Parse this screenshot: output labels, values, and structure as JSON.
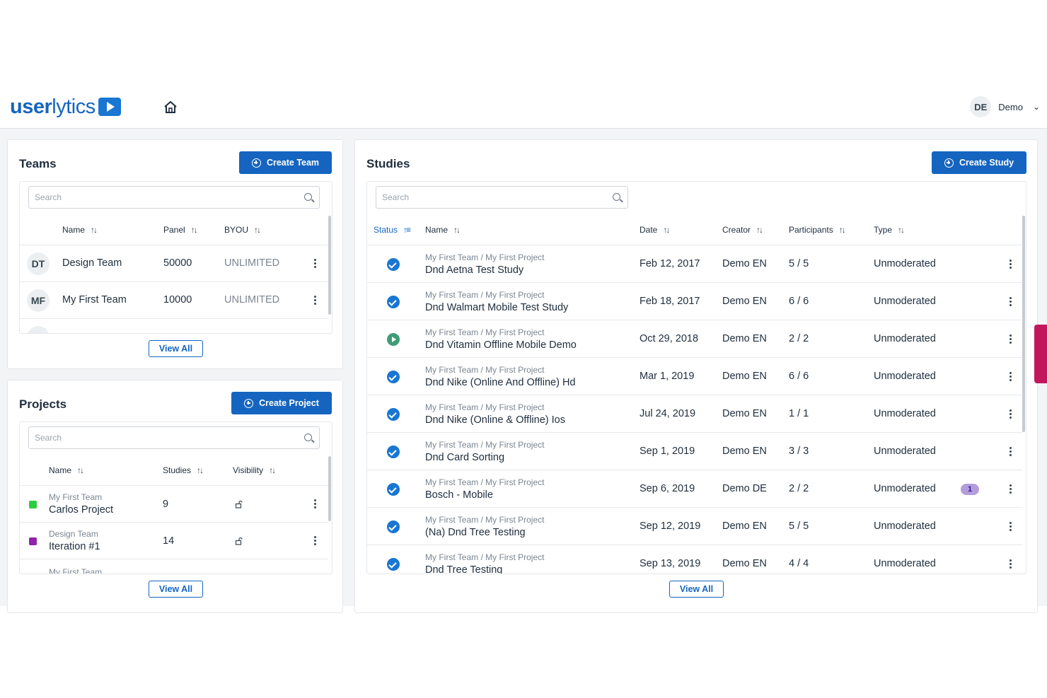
{
  "header": {
    "logo_bold": "user",
    "logo_light": "lytics",
    "user_initials": "DE",
    "user_name": "Demo"
  },
  "teams": {
    "title": "Teams",
    "create_label": "Create Team",
    "search_placeholder": "Search",
    "columns": [
      "Name",
      "Panel",
      "BYOU"
    ],
    "rows": [
      {
        "initials": "DT",
        "name": "Design Team",
        "panel": "50000",
        "byou": "UNLIMITED"
      },
      {
        "initials": "MF",
        "name": "My First Team",
        "panel": "10000",
        "byou": "UNLIMITED"
      }
    ],
    "view_all": "View All"
  },
  "projects": {
    "title": "Projects",
    "create_label": "Create Project",
    "search_placeholder": "Search",
    "columns": [
      "Name",
      "Studies",
      "Visibility"
    ],
    "rows": [
      {
        "team": "My First Team",
        "name": "Carlos Project",
        "studies": "9",
        "color": "#2ecc40"
      },
      {
        "team": "Design Team",
        "name": "Iteration #1",
        "studies": "14",
        "color": "#8e24aa"
      },
      {
        "team": "My First Team"
      }
    ],
    "view_all": "View All"
  },
  "studies": {
    "title": "Studies",
    "create_label": "Create Study",
    "search_placeholder": "Search",
    "columns": [
      "Status",
      "Name",
      "Date",
      "Creator",
      "Participants",
      "Type"
    ],
    "rows": [
      {
        "status": "complete",
        "path": "My First Team / My First Project",
        "name": "Dnd Aetna Test Study",
        "date": "Feb 12, 2017",
        "creator": "Demo EN",
        "participants": "5 / 5",
        "type": "Unmoderated"
      },
      {
        "status": "complete",
        "path": "My First Team / My First Project",
        "name": "Dnd Walmart Mobile Test Study",
        "date": "Feb 18, 2017",
        "creator": "Demo EN",
        "participants": "6 / 6",
        "type": "Unmoderated"
      },
      {
        "status": "running",
        "path": "My First Team / My First Project",
        "name": "Dnd Vitamin Offline Mobile Demo",
        "date": "Oct 29, 2018",
        "creator": "Demo EN",
        "participants": "2 / 2",
        "type": "Unmoderated"
      },
      {
        "status": "complete",
        "path": "My First Team / My First Project",
        "name": "Dnd Nike (Online And Offline) Hd",
        "date": "Mar 1, 2019",
        "creator": "Demo EN",
        "participants": "6 / 6",
        "type": "Unmoderated"
      },
      {
        "status": "complete",
        "path": "My First Team / My First Project",
        "name": "Dnd Nike (Online & Offline) Ios",
        "date": "Jul 24, 2019",
        "creator": "Demo EN",
        "participants": "1 / 1",
        "type": "Unmoderated"
      },
      {
        "status": "complete",
        "path": "My First Team / My First Project",
        "name": "Dnd Card Sorting",
        "date": "Sep 1, 2019",
        "creator": "Demo EN",
        "participants": "3 / 3",
        "type": "Unmoderated"
      },
      {
        "status": "complete",
        "path": "My First Team / My First Project",
        "name": "Bosch - Mobile",
        "date": "Sep 6, 2019",
        "creator": "Demo DE",
        "participants": "2 / 2",
        "type": "Unmoderated",
        "badge": "1"
      },
      {
        "status": "complete",
        "path": "My First Team / My First Project",
        "name": "(Na) Dnd Tree Testing",
        "date": "Sep 12, 2019",
        "creator": "Demo EN",
        "participants": "5 / 5",
        "type": "Unmoderated"
      },
      {
        "status": "complete",
        "path": "My First Team / My First Project",
        "name": "Dnd Tree Testing",
        "date": "Sep 13, 2019",
        "creator": "Demo EN",
        "participants": "4 / 4",
        "type": "Unmoderated"
      }
    ],
    "view_all": "View All"
  },
  "colors": {
    "primary": "#1565c0",
    "check": "#1976d2",
    "running": "#3e9c79",
    "badge": "#b39ddb",
    "side_tab": "#c2185b"
  }
}
